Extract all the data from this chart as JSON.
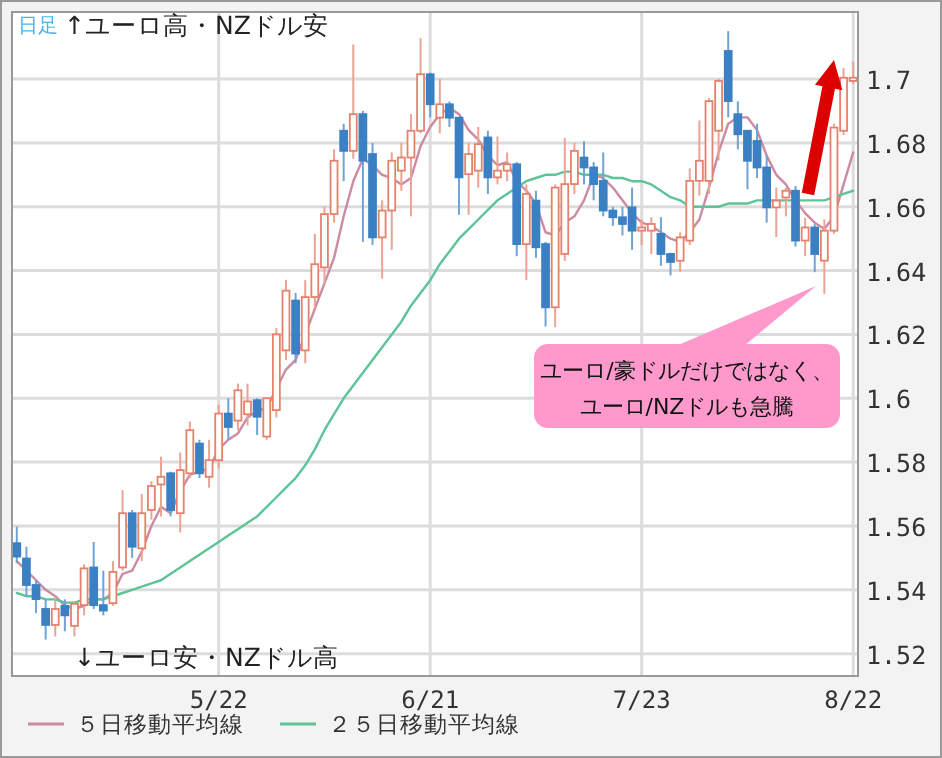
{
  "chart_data": {
    "type": "candlestick",
    "categories": [
      null,
      null,
      null,
      null,
      null,
      null,
      null,
      null,
      null,
      null,
      null,
      null,
      null,
      null,
      null,
      null,
      null,
      null,
      null,
      null,
      null,
      "5/22",
      null,
      null,
      null,
      null,
      null,
      null,
      null,
      null,
      null,
      null,
      null,
      null,
      null,
      null,
      null,
      null,
      null,
      null,
      null,
      null,
      null,
      "6/21",
      null,
      null,
      null,
      null,
      null,
      null,
      null,
      null,
      null,
      null,
      null,
      null,
      null,
      null,
      null,
      null,
      null,
      null,
      null,
      null,
      null,
      "7/23",
      null,
      null,
      null,
      null,
      null,
      null,
      null,
      null,
      null,
      null,
      null,
      null,
      null,
      null,
      null,
      null,
      null,
      null,
      null,
      null,
      null,
      "8/22"
    ],
    "ohlc": [
      [
        1.5546,
        1.5598,
        1.5483,
        1.5504
      ],
      [
        1.5498,
        1.5535,
        1.5379,
        1.5415
      ],
      [
        1.5415,
        1.543,
        1.5327,
        1.5371
      ],
      [
        1.534,
        1.5369,
        1.5244,
        1.529
      ],
      [
        1.529,
        1.5379,
        1.5254,
        1.534
      ],
      [
        1.535,
        1.537,
        1.527,
        1.532
      ],
      [
        1.5287,
        1.536,
        1.5254,
        1.5356
      ],
      [
        1.5352,
        1.548,
        1.532,
        1.5467
      ],
      [
        1.547,
        1.555,
        1.534,
        1.5352
      ],
      [
        1.5352,
        1.546,
        1.532,
        1.5335
      ],
      [
        1.5358,
        1.549,
        1.535,
        1.5456
      ],
      [
        1.547,
        1.5712,
        1.546,
        1.564
      ],
      [
        1.564,
        1.565,
        1.55,
        1.5535
      ],
      [
        1.553,
        1.57,
        1.549,
        1.564
      ],
      [
        1.565,
        1.574,
        1.562,
        1.5725
      ],
      [
        1.573,
        1.5817,
        1.563,
        1.5754
      ],
      [
        1.5765,
        1.577,
        1.563,
        1.565
      ],
      [
        1.564,
        1.583,
        1.558,
        1.5775
      ],
      [
        1.5765,
        1.5927,
        1.575,
        1.59
      ],
      [
        1.5858,
        1.587,
        1.575,
        1.5765
      ],
      [
        1.5754,
        1.587,
        1.572,
        1.5806
      ],
      [
        1.5806,
        1.598,
        1.578,
        1.5952
      ],
      [
        1.5952,
        1.6,
        1.587,
        1.591
      ],
      [
        1.593,
        1.6046,
        1.59,
        1.6025
      ],
      [
        1.595,
        1.6046,
        1.5915,
        1.599
      ],
      [
        1.5994,
        1.6,
        1.5885,
        1.5942
      ],
      [
        1.588,
        1.6,
        1.587,
        1.6
      ],
      [
        1.5963,
        1.622,
        1.594,
        1.62
      ],
      [
        1.615,
        1.637,
        1.612,
        1.6337
      ],
      [
        1.6306,
        1.633,
        1.611,
        1.614
      ],
      [
        1.615,
        1.637,
        1.611,
        1.6317
      ],
      [
        1.6317,
        1.6515,
        1.628,
        1.642
      ],
      [
        1.641,
        1.66,
        1.636,
        1.6577
      ],
      [
        1.6577,
        1.678,
        1.655,
        1.6744
      ],
      [
        1.6838,
        1.686,
        1.668,
        1.6775
      ],
      [
        1.6775,
        1.7108,
        1.675,
        1.689
      ],
      [
        1.689,
        1.69,
        1.649,
        1.6744
      ],
      [
        1.6765,
        1.68,
        1.648,
        1.6504
      ],
      [
        1.6504,
        1.662,
        1.6375,
        1.6588
      ],
      [
        1.6588,
        1.677,
        1.6465,
        1.6744
      ],
      [
        1.6713,
        1.68,
        1.665,
        1.6754
      ],
      [
        1.6754,
        1.689,
        1.657,
        1.6838
      ],
      [
        1.6838,
        1.7128,
        1.683,
        1.7015
      ],
      [
        1.7015,
        1.702,
        1.688,
        1.6921
      ],
      [
        1.6879,
        1.7,
        1.683,
        1.6921
      ],
      [
        1.6921,
        1.693,
        1.685,
        1.6879
      ],
      [
        1.6879,
        1.688,
        1.6575,
        1.6692
      ],
      [
        1.6702,
        1.68,
        1.6575,
        1.6765
      ],
      [
        1.6713,
        1.685,
        1.666,
        1.6796
      ],
      [
        1.6817,
        1.6838,
        1.664,
        1.6692
      ],
      [
        1.6692,
        1.682,
        1.667,
        1.6713
      ],
      [
        1.6713,
        1.677,
        1.668,
        1.6733
      ],
      [
        1.6733,
        1.674,
        1.6445,
        1.6483
      ],
      [
        1.6483,
        1.667,
        1.637,
        1.664
      ],
      [
        1.6619,
        1.665,
        1.644,
        1.6473
      ],
      [
        1.6483,
        1.649,
        1.6225,
        1.6285
      ],
      [
        1.6285,
        1.667,
        1.6223,
        1.666
      ],
      [
        1.6452,
        1.6815,
        1.643,
        1.6671
      ],
      [
        1.6671,
        1.68,
        1.664,
        1.6775
      ],
      [
        1.6754,
        1.6805,
        1.667,
        1.6723
      ],
      [
        1.6723,
        1.674,
        1.662,
        1.6671
      ],
      [
        1.6681,
        1.677,
        1.657,
        1.6588
      ],
      [
        1.6588,
        1.66,
        1.654,
        1.6567
      ],
      [
        1.6567,
        1.66,
        1.651,
        1.6546
      ],
      [
        1.6598,
        1.666,
        1.6465,
        1.6525
      ],
      [
        1.6525,
        1.656,
        1.648,
        1.6535
      ],
      [
        1.6525,
        1.6567,
        1.6452,
        1.6546
      ],
      [
        1.6515,
        1.6567,
        1.6415,
        1.6452
      ],
      [
        1.6452,
        1.6456,
        1.6385,
        1.6427
      ],
      [
        1.6431,
        1.652,
        1.6395,
        1.6504
      ],
      [
        1.6494,
        1.672,
        1.648,
        1.6681
      ],
      [
        1.6681,
        1.687,
        1.6635,
        1.6744
      ],
      [
        1.6681,
        1.694,
        1.664,
        1.6931
      ],
      [
        1.6838,
        1.7,
        1.6745,
        1.6994
      ],
      [
        1.7088,
        1.715,
        1.688,
        1.6931
      ],
      [
        1.689,
        1.693,
        1.678,
        1.6827
      ],
      [
        1.6838,
        1.6838,
        1.6655,
        1.6744
      ],
      [
        1.6806,
        1.686,
        1.669,
        1.6723
      ],
      [
        1.6723,
        1.676,
        1.655,
        1.6598
      ],
      [
        1.6598,
        1.666,
        1.6505,
        1.6619
      ],
      [
        1.6629,
        1.666,
        1.657,
        1.665
      ],
      [
        1.665,
        1.6665,
        1.6475,
        1.6494
      ],
      [
        1.6494,
        1.6565,
        1.6445,
        1.6535
      ],
      [
        1.6535,
        1.6545,
        1.6395,
        1.6452
      ],
      [
        1.6431,
        1.656,
        1.6327,
        1.6525
      ],
      [
        1.6525,
        1.686,
        1.6515,
        1.6848
      ],
      [
        1.6838,
        1.7035,
        1.6825,
        1.7004
      ],
      [
        1.6994,
        1.7055,
        1.6985,
        1.7004
      ]
    ],
    "series": [
      {
        "name": "５日移動平均線",
        "type": "line",
        "color": "#cc8aa3",
        "values": [
          1.549,
          1.546,
          1.543,
          1.54,
          1.538,
          1.535,
          1.534,
          1.535,
          1.537,
          1.537,
          1.539,
          1.545,
          1.546,
          1.552,
          1.56,
          1.566,
          1.564,
          1.571,
          1.576,
          1.577,
          1.578,
          1.584,
          1.587,
          1.589,
          1.594,
          1.596,
          1.597,
          1.603,
          1.609,
          1.612,
          1.62,
          1.628,
          1.636,
          1.644,
          1.657,
          1.668,
          1.675,
          1.673,
          1.67,
          1.669,
          1.667,
          1.669,
          1.679,
          1.685,
          1.689,
          1.691,
          1.689,
          1.684,
          1.681,
          1.676,
          1.673,
          1.674,
          1.668,
          1.665,
          1.661,
          1.652,
          1.651,
          1.655,
          1.657,
          1.662,
          1.67,
          1.669,
          1.666,
          1.662,
          1.658,
          1.655,
          1.654,
          1.652,
          1.65,
          1.649,
          1.652,
          1.656,
          1.666,
          1.677,
          1.686,
          1.688,
          1.688,
          1.684,
          1.676,
          1.67,
          1.667,
          1.662,
          1.658,
          1.655,
          1.653,
          1.657,
          1.667,
          1.677
        ]
      },
      {
        "name": "２５日移動平均線",
        "type": "line",
        "color": "#5cc497",
        "values": [
          1.539,
          1.538,
          1.538,
          1.537,
          1.537,
          1.536,
          1.536,
          1.537,
          1.537,
          1.537,
          1.538,
          1.539,
          1.54,
          1.541,
          1.542,
          1.543,
          1.545,
          1.547,
          1.549,
          1.551,
          1.553,
          1.555,
          1.557,
          1.559,
          1.561,
          1.563,
          1.566,
          1.569,
          1.572,
          1.575,
          1.579,
          1.584,
          1.59,
          1.595,
          1.6,
          1.604,
          1.608,
          1.612,
          1.616,
          1.62,
          1.624,
          1.629,
          1.633,
          1.637,
          1.642,
          1.646,
          1.65,
          1.653,
          1.656,
          1.659,
          1.662,
          1.664,
          1.666,
          1.668,
          1.669,
          1.67,
          1.67,
          1.671,
          1.671,
          1.67,
          1.67,
          1.67,
          1.669,
          1.669,
          1.668,
          1.668,
          1.667,
          1.665,
          1.663,
          1.662,
          1.66,
          1.66,
          1.66,
          1.66,
          1.661,
          1.661,
          1.661,
          1.662,
          1.662,
          1.662,
          1.662,
          1.662,
          1.662,
          1.662,
          1.662,
          1.663,
          1.664,
          1.665
        ]
      }
    ],
    "ylim": [
      1.513,
      1.721
    ],
    "yticks": [
      1.52,
      1.54,
      1.56,
      1.58,
      1.6,
      1.62,
      1.64,
      1.66,
      1.68,
      1.7
    ],
    "grid": true,
    "legend": "bottom",
    "annotations": [
      "日足",
      "↑ユーロ高・NZドル安",
      "↓ユーロ安・NZドル高",
      "ユーロ/豪ドルだけではなく、ユーロ/NZドルも急騰"
    ]
  }
}
